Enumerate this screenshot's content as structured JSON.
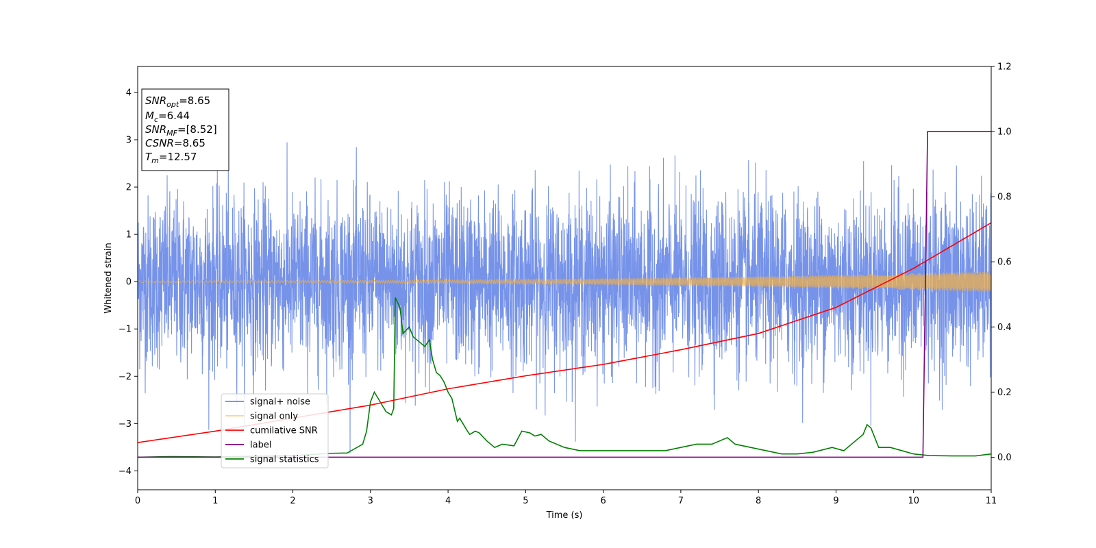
{
  "chart_data": {
    "type": "line",
    "xlabel": "Time (s)",
    "ylabel": "Whitened strain",
    "xlim": [
      0,
      11
    ],
    "ylim": [
      -4.4,
      4.55
    ],
    "y2lim": [
      -0.1,
      1.2
    ],
    "x_ticks": [
      0,
      1,
      2,
      3,
      4,
      5,
      6,
      7,
      8,
      9,
      10,
      11
    ],
    "y_ticks": [
      -4,
      -3,
      -2,
      -1,
      0,
      1,
      2,
      3,
      4
    ],
    "y2_ticks": [
      0.0,
      0.2,
      0.4,
      0.6,
      0.8,
      1.0,
      1.2
    ],
    "grid": false,
    "legend_position": "lower-left",
    "annotation": {
      "lines": [
        {
          "main": "SNR",
          "sub": "opt",
          "rest": "=8.65"
        },
        {
          "main": "M",
          "sub": "c",
          "rest": "=6.44"
        },
        {
          "main": "SNR",
          "sub": "MF",
          "rest": "=[8.52]"
        },
        {
          "main": "CSNR",
          "sub": "",
          "rest": "=8.65"
        },
        {
          "main": "T",
          "sub": "m",
          "rest": "=12.57"
        }
      ]
    },
    "series": [
      {
        "name": "signal+ noise",
        "color": "#4169e1",
        "axis": "left",
        "kind": "noise_band",
        "approx_std": 0.9,
        "range": [
          -3.95,
          4.2
        ]
      },
      {
        "name": "signal only",
        "color": "#f5b041",
        "axis": "left",
        "kind": "chirp",
        "amplitude_start": 0.02,
        "amplitude_end": 0.22
      },
      {
        "name": "cumilative SNR",
        "color": "#ff0000",
        "axis": "right",
        "points": [
          [
            0,
            0.045
          ],
          [
            1,
            0.08
          ],
          [
            2,
            0.12
          ],
          [
            3,
            0.16
          ],
          [
            4,
            0.21
          ],
          [
            5,
            0.25
          ],
          [
            6,
            0.285
          ],
          [
            7,
            0.33
          ],
          [
            8,
            0.38
          ],
          [
            9,
            0.46
          ],
          [
            10,
            0.58
          ],
          [
            10.5,
            0.65
          ],
          [
            11,
            0.72
          ]
        ]
      },
      {
        "name": "label",
        "color": "#800080",
        "axis": "right",
        "points": [
          [
            0,
            0.0
          ],
          [
            10.12,
            0.0
          ],
          [
            10.18,
            1.0
          ],
          [
            11,
            1.0
          ]
        ]
      },
      {
        "name": "signal statistics",
        "color": "#008000",
        "axis": "right",
        "points": [
          [
            0,
            0.0
          ],
          [
            0.4,
            0.002
          ],
          [
            1.0,
            0.001
          ],
          [
            1.5,
            0.003
          ],
          [
            2.0,
            0.005
          ],
          [
            2.5,
            0.012
          ],
          [
            2.7,
            0.013
          ],
          [
            2.9,
            0.04
          ],
          [
            2.95,
            0.08
          ],
          [
            3.0,
            0.17
          ],
          [
            3.05,
            0.2
          ],
          [
            3.1,
            0.18
          ],
          [
            3.2,
            0.14
          ],
          [
            3.27,
            0.13
          ],
          [
            3.3,
            0.15
          ],
          [
            3.32,
            0.49
          ],
          [
            3.38,
            0.46
          ],
          [
            3.42,
            0.38
          ],
          [
            3.5,
            0.4
          ],
          [
            3.55,
            0.37
          ],
          [
            3.6,
            0.36
          ],
          [
            3.7,
            0.34
          ],
          [
            3.76,
            0.36
          ],
          [
            3.8,
            0.3
          ],
          [
            3.85,
            0.26
          ],
          [
            3.9,
            0.25
          ],
          [
            3.95,
            0.23
          ],
          [
            4.0,
            0.2
          ],
          [
            4.05,
            0.18
          ],
          [
            4.12,
            0.11
          ],
          [
            4.15,
            0.12
          ],
          [
            4.25,
            0.08
          ],
          [
            4.28,
            0.07
          ],
          [
            4.35,
            0.08
          ],
          [
            4.4,
            0.075
          ],
          [
            4.5,
            0.05
          ],
          [
            4.6,
            0.03
          ],
          [
            4.7,
            0.04
          ],
          [
            4.85,
            0.035
          ],
          [
            4.95,
            0.08
          ],
          [
            5.05,
            0.075
          ],
          [
            5.12,
            0.065
          ],
          [
            5.2,
            0.07
          ],
          [
            5.3,
            0.05
          ],
          [
            5.5,
            0.03
          ],
          [
            5.7,
            0.02
          ],
          [
            6.0,
            0.02
          ],
          [
            6.3,
            0.02
          ],
          [
            6.5,
            0.02
          ],
          [
            6.8,
            0.02
          ],
          [
            7.0,
            0.03
          ],
          [
            7.2,
            0.04
          ],
          [
            7.4,
            0.04
          ],
          [
            7.6,
            0.06
          ],
          [
            7.7,
            0.04
          ],
          [
            7.9,
            0.03
          ],
          [
            8.1,
            0.02
          ],
          [
            8.3,
            0.01
          ],
          [
            8.5,
            0.01
          ],
          [
            8.7,
            0.015
          ],
          [
            8.95,
            0.03
          ],
          [
            9.1,
            0.02
          ],
          [
            9.25,
            0.05
          ],
          [
            9.3,
            0.06
          ],
          [
            9.35,
            0.07
          ],
          [
            9.4,
            0.1
          ],
          [
            9.45,
            0.09
          ],
          [
            9.55,
            0.03
          ],
          [
            9.7,
            0.03
          ],
          [
            9.85,
            0.02
          ],
          [
            10.0,
            0.01
          ],
          [
            10.2,
            0.005
          ],
          [
            10.5,
            0.004
          ],
          [
            10.8,
            0.004
          ],
          [
            11.0,
            0.01
          ]
        ]
      }
    ]
  }
}
